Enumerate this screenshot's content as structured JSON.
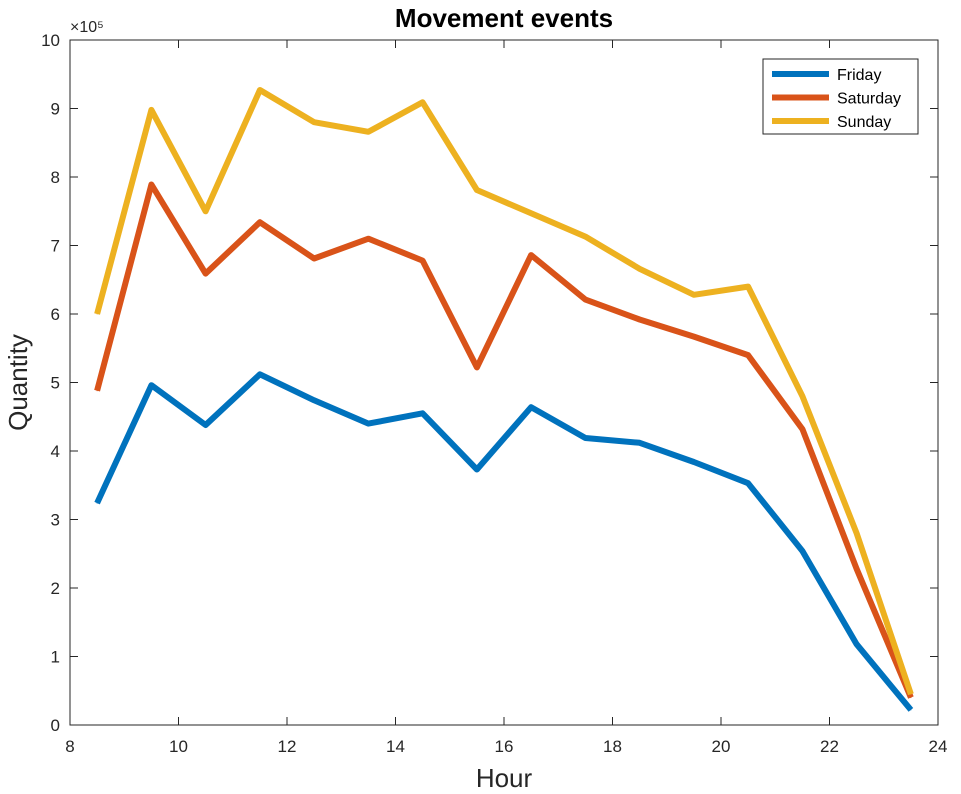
{
  "chart_data": {
    "type": "line",
    "title": "Movement events",
    "xlabel": "Hour",
    "ylabel": "Quantity",
    "xlim": [
      8,
      24
    ],
    "ylim": [
      0,
      1000000
    ],
    "y_exponent_label": "×10⁵",
    "y_scale_factor": 100000,
    "x_ticks": [
      8,
      10,
      12,
      14,
      16,
      18,
      20,
      22,
      24
    ],
    "y_ticks": [
      0,
      1,
      2,
      3,
      4,
      5,
      6,
      7,
      8,
      9,
      10
    ],
    "grid": false,
    "legend_position": "top-right",
    "x": [
      8.5,
      9.5,
      10.5,
      11.5,
      12.5,
      13.5,
      14.5,
      15.5,
      16.5,
      17.5,
      18.5,
      19.5,
      20.5,
      21.5,
      22.5,
      23.5
    ],
    "series": [
      {
        "name": "Friday",
        "color": "#0072bd",
        "values": [
          324000,
          496000,
          438000,
          512000,
          474000,
          440000,
          455000,
          373000,
          464000,
          419000,
          412000,
          384000,
          353000,
          254000,
          118000,
          22000
        ]
      },
      {
        "name": "Saturday",
        "color": "#d95319",
        "values": [
          488000,
          789000,
          659000,
          734000,
          681000,
          710000,
          678000,
          522000,
          686000,
          621000,
          592000,
          567000,
          540000,
          432000,
          228000,
          40000
        ]
      },
      {
        "name": "Sunday",
        "color": "#edb120",
        "values": [
          600000,
          898000,
          750000,
          927000,
          880000,
          866000,
          909000,
          781000,
          747000,
          713000,
          666000,
          628000,
          640000,
          480000,
          280000,
          45000
        ]
      }
    ]
  }
}
